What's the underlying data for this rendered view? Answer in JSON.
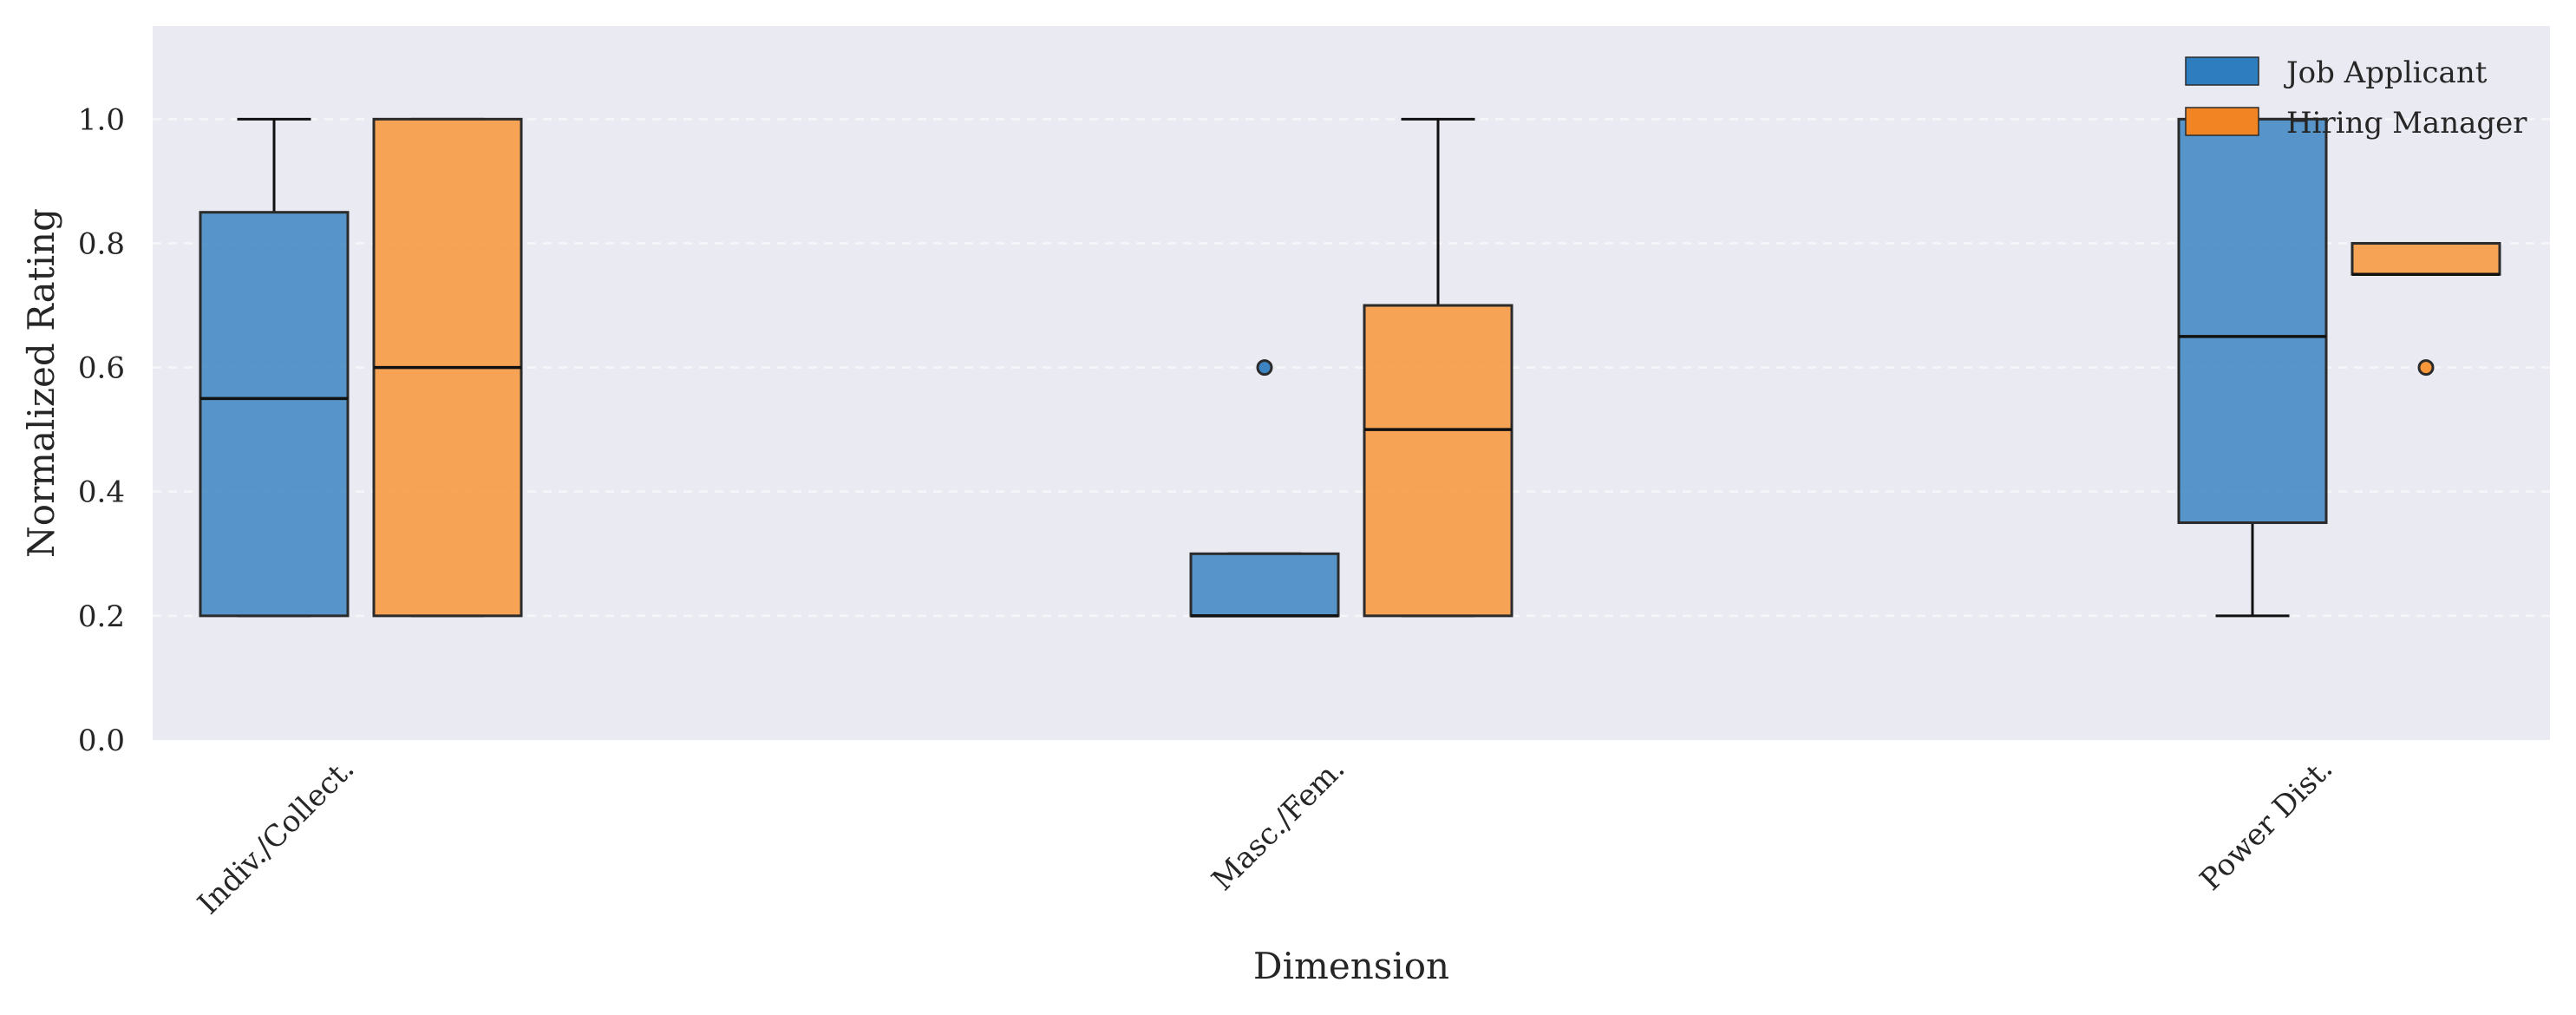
{
  "chart_data": {
    "type": "box",
    "title": "",
    "xlabel": "Dimension",
    "ylabel": "Normalized Rating",
    "ylim": [
      0,
      1.15
    ],
    "yticks": [
      "0.0",
      "0.2",
      "0.4",
      "0.6",
      "0.8",
      "1.0"
    ],
    "categories": [
      "Indiv./Collect.",
      "Masc./Fem.",
      "Power Dist."
    ],
    "grid": "horizontal dashed",
    "legend_position": "top-right",
    "colors": {
      "background": "#EAEAF2",
      "Job Applicant": "#3D85C2",
      "Hiring Manager": "#F8963A",
      "Job Applicant legend": "#2E7EBF",
      "Hiring Manager legend": "#F28424"
    },
    "series": [
      {
        "name": "Job Applicant",
        "boxes": [
          {
            "category": "Indiv./Collect.",
            "whisker_low": 0.2,
            "q1": 0.2,
            "median": 0.55,
            "q3": 0.85,
            "whisker_high": 1.0,
            "outliers": []
          },
          {
            "category": "Masc./Fem.",
            "whisker_low": 0.2,
            "q1": 0.2,
            "median": 0.2,
            "q3": 0.3,
            "whisker_high": 0.3,
            "outliers": [
              0.6
            ]
          },
          {
            "category": "Power Dist.",
            "whisker_low": 0.2,
            "q1": 0.35,
            "median": 0.65,
            "q3": 1.0,
            "whisker_high": 1.0,
            "outliers": []
          }
        ]
      },
      {
        "name": "Hiring Manager",
        "boxes": [
          {
            "category": "Indiv./Collect.",
            "whisker_low": 0.2,
            "q1": 0.2,
            "median": 0.6,
            "q3": 1.0,
            "whisker_high": 1.0,
            "outliers": []
          },
          {
            "category": "Masc./Fem.",
            "whisker_low": 0.2,
            "q1": 0.2,
            "median": 0.5,
            "q3": 0.7,
            "whisker_high": 1.0,
            "outliers": []
          },
          {
            "category": "Power Dist.",
            "whisker_low": 0.75,
            "q1": 0.75,
            "median": 0.75,
            "q3": 0.8,
            "whisker_high": 0.8,
            "outliers": [
              0.6
            ]
          }
        ]
      }
    ]
  }
}
